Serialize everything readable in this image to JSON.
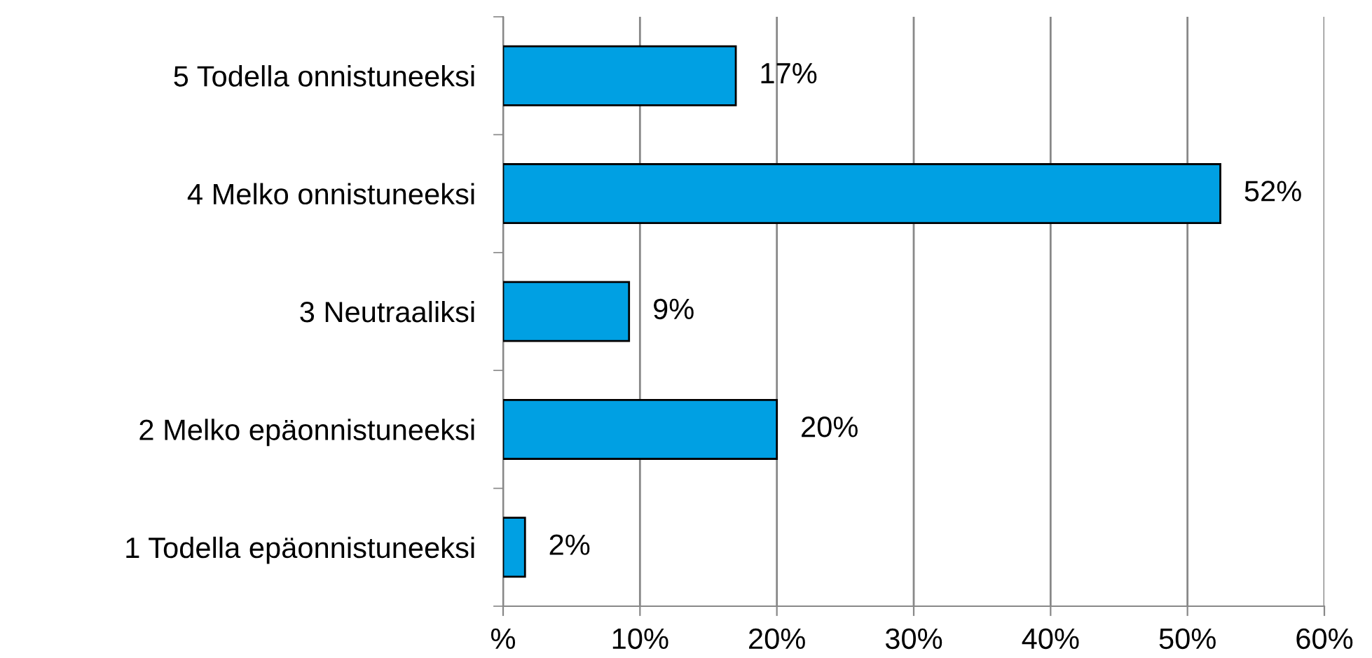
{
  "chart_data": {
    "type": "bar",
    "orientation": "horizontal",
    "categories": [
      "5 Todella onnistuneeksi",
      "4 Melko onnistuneeksi",
      "3 Neutraaliksi",
      "2 Melko epäonnistuneeksi",
      "1 Todella epäonnistuneeksi"
    ],
    "values": [
      17,
      52.4,
      9.2,
      20,
      1.6
    ],
    "value_labels": [
      "17%",
      "52%",
      "9%",
      "20%",
      "2%"
    ],
    "color": "#00a0e3",
    "xlim": [
      0,
      60
    ],
    "xticks": [
      {
        "value": 0,
        "label": "%"
      },
      {
        "value": 10,
        "label": "10%"
      },
      {
        "value": 20,
        "label": "20%"
      },
      {
        "value": 30,
        "label": "30%"
      },
      {
        "value": 40,
        "label": "40%"
      },
      {
        "value": 50,
        "label": "50%"
      },
      {
        "value": 60,
        "label": "60%"
      }
    ],
    "grid": "x"
  }
}
